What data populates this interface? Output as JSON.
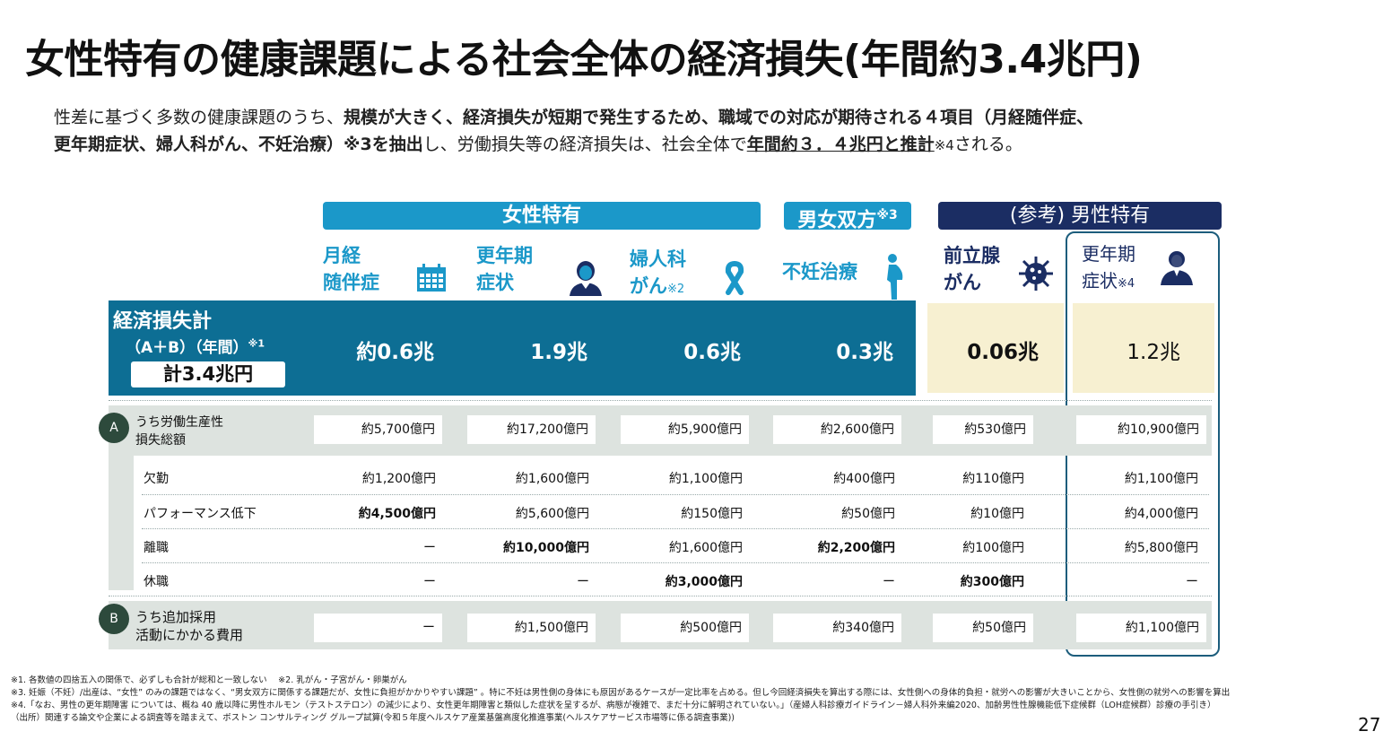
{
  "title": "女性特有の健康課題による社会全体の経済損失(年間約3.4兆円)",
  "intro": {
    "l1_a": "性差に基づく多数の健康課題のうち、",
    "l1_b": "規模が大きく、経済損失が短期で発生するため、職域での対応が期待される４項目（月経随伴症、",
    "l2_a": "更年期症状、婦人科がん、不妊治療）※3を抽出",
    "l2_b": "し、労働損失等の経済損失は、社会全体で",
    "l2_c": "年間約３．４兆円と推計",
    "l2_d": "※4",
    "l2_e": "される。"
  },
  "groups": {
    "female": "女性特有",
    "both": "男女双方",
    "both_note": "※3",
    "male": "(参考) 男性特有"
  },
  "categories": {
    "c1_l1": "月経",
    "c1_l2": "随伴症",
    "c2_l1": "更年期",
    "c2_l2": "症状",
    "c3_l1": "婦人科",
    "c3_l2": "がん",
    "c3_note": "※2",
    "c4": "不妊治療",
    "c5_l1": "前立腺",
    "c5_l2": "がん",
    "c6_l1": "更年期",
    "c6_l2": "症状",
    "c6_note": "※4"
  },
  "icons": [
    "calendar-icon",
    "woman-icon",
    "ribbon-icon",
    "pregnant-woman-icon",
    "virus-icon",
    "man-icon"
  ],
  "total": {
    "label_l1": "経済損失計",
    "label_l2": "（A＋B）（年間）",
    "label_note": "※1",
    "sum": "計3.4兆円",
    "values": [
      "約0.6兆",
      "1.9兆",
      "0.6兆",
      "0.3兆",
      "0.06兆",
      "1.2兆"
    ]
  },
  "sectionA": {
    "badge": "A",
    "label_l1": "うち労働生産性",
    "label_l2": "損失総額",
    "values": [
      "約5,700億円",
      "約17,200億円",
      "約5,900億円",
      "約2,600億円",
      "約530億円",
      "約10,900億円"
    ]
  },
  "rows": [
    {
      "label": "欠勤",
      "values": [
        "約1,200億円",
        "約1,600億円",
        "約1,100億円",
        "約400億円",
        "約110億円",
        "約1,100億円"
      ],
      "bold": [
        false,
        false,
        false,
        false,
        false,
        false
      ]
    },
    {
      "label": "パフォーマンス低下",
      "values": [
        "約4,500億円",
        "約5,600億円",
        "約150億円",
        "約50億円",
        "約10億円",
        "約4,000億円"
      ],
      "bold": [
        true,
        false,
        false,
        false,
        false,
        false
      ]
    },
    {
      "label": "離職",
      "values": [
        "ー",
        "約10,000億円",
        "約1,600億円",
        "約2,200億円",
        "約100億円",
        "約5,800億円"
      ],
      "bold": [
        false,
        true,
        false,
        true,
        false,
        false
      ]
    },
    {
      "label": "休職",
      "values": [
        "ー",
        "ー",
        "約3,000億円",
        "ー",
        "約300億円",
        "ー"
      ],
      "bold": [
        false,
        false,
        true,
        false,
        true,
        false
      ]
    }
  ],
  "sectionB": {
    "badge": "B",
    "label_l1": "うち追加採用",
    "label_l2": "活動にかかる費用",
    "values": [
      "ー",
      "約1,500億円",
      "約500億円",
      "約340億円",
      "約50億円",
      "約1,100億円"
    ]
  },
  "footnotes": {
    "f1": "※1. 各数値の四捨五入の関係で、必ずしも合計が総和と一致しない　 ※2. 乳がん・子宮がん・卵巣がん",
    "f2": "※3. 妊娠（不妊）/出産は、“女性” のみの課題ではなく、“男女双方に関係する課題だが、女性に負担がかかりやすい課題” 。特に不妊は男性側の身体にも原因があるケースが一定比率を占める。但し今回経済損失を算出する際には、女性側への身体的負担・就労への影響が大きいことから、女性側の就労への影響を算出",
    "f3": "※4.「なお、男性の更年期障害 については、概ね 40 歳以降に男性ホルモン（テストステロン）の減少により、女性更年期障害と類似した症状を呈するが、病態が複雑で、まだ十分に解明されていない。」（産婦人科診療ガイドライン－婦人科外来編2020、加齢男性性腺機能低下症候群（LOH症候群）診療の手引き）",
    "f4": "（出所）関連する論文や企業による調査等を踏まえて、ボストン コンサルティング グループ試算(令和５年度ヘルスケア産業基盤高度化推進事業(ヘルスケアサービス市場等に係る調査事業))"
  },
  "page_number": "27",
  "colors": {
    "teal_header": "#1b98c9",
    "navy_header": "#1b2d63",
    "dark_teal_box": "#0d6e94",
    "cream": "#f7f0d1",
    "gray_band": "#dde3df",
    "badge": "#2d4a3c",
    "outline": "#1c5d7c"
  }
}
